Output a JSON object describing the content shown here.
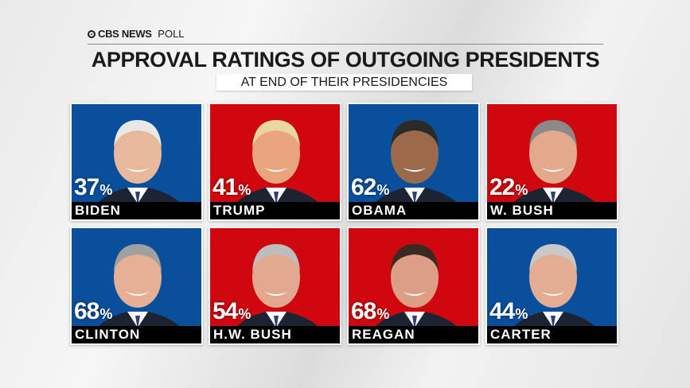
{
  "header": {
    "brand": "CBS NEWS",
    "brand_suffix": "POLL",
    "title": "APPROVAL RATINGS OF OUTGOING PRESIDENTS",
    "subtitle": "AT END OF THEIR PRESIDENCIES"
  },
  "colors": {
    "democrat": "#0a4f9c",
    "republican": "#d0070f"
  },
  "presidents": [
    {
      "name": "BIDEN",
      "value": "37",
      "party": "democrat"
    },
    {
      "name": "TRUMP",
      "value": "41",
      "party": "republican"
    },
    {
      "name": "OBAMA",
      "value": "62",
      "party": "democrat"
    },
    {
      "name": "W. BUSH",
      "value": "22",
      "party": "republican"
    },
    {
      "name": "CLINTON",
      "value": "68",
      "party": "democrat"
    },
    {
      "name": "H.W. BUSH",
      "value": "54",
      "party": "republican"
    },
    {
      "name": "REAGAN",
      "value": "68",
      "party": "republican"
    },
    {
      "name": "CARTER",
      "value": "44",
      "party": "democrat"
    }
  ],
  "percent_sign": "%"
}
